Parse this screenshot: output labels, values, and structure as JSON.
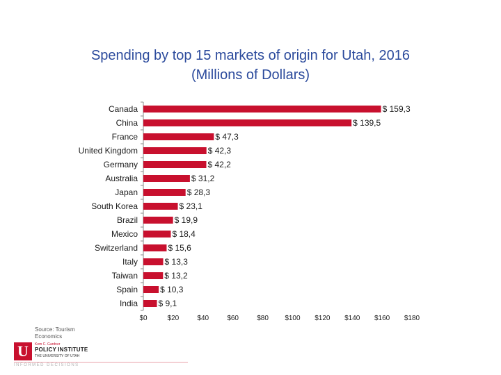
{
  "title_line1": "Spending by top 15 markets of origin for Utah, 2016",
  "title_line2": "(Millions of Dollars)",
  "source_line1": "Source: Tourism",
  "source_line2": "Economics",
  "logo": {
    "letter": "U",
    "kicker": "Kem C. Gardner",
    "name": "POLICY INSTITUTE",
    "sub": "THE UNIVERSITY OF UTAH",
    "tagline": "INFORMED DECISIONS"
  },
  "colors": {
    "bar": "#c8102e",
    "title": "#2b4a9c",
    "axis": "#888888"
  },
  "chart_data": {
    "type": "bar",
    "orientation": "horizontal",
    "title": "Spending by top 15 markets of origin for Utah, 2016 (Millions of Dollars)",
    "categories": [
      "Canada",
      "China",
      "France",
      "United Kingdom",
      "Germany",
      "Australia",
      "Japan",
      "South Korea",
      "Brazil",
      "Mexico",
      "Switzerland",
      "Italy",
      "Taiwan",
      "Spain",
      "India"
    ],
    "values": [
      159.3,
      139.5,
      47.3,
      42.3,
      42.2,
      31.2,
      28.3,
      23.1,
      19.9,
      18.4,
      15.6,
      13.3,
      13.2,
      10.3,
      9.1
    ],
    "value_labels": [
      "$ 159,3",
      "$ 139,5",
      "$ 47,3",
      "$ 42,3",
      "$ 42,2",
      "$ 31,2",
      "$ 28,3",
      "$ 23,1",
      "$ 19,9",
      "$ 18,4",
      "$ 15,6",
      "$ 13,3",
      "$ 13,2",
      "$ 10,3",
      "$ 9,1"
    ],
    "xlim": [
      0,
      180
    ],
    "xticks": [
      0,
      20,
      40,
      60,
      80,
      100,
      120,
      140,
      160,
      180
    ],
    "xtick_labels": [
      "$0",
      "$20",
      "$40",
      "$60",
      "$80",
      "$100",
      "$120",
      "$140",
      "$160",
      "$180"
    ],
    "xlabel": "",
    "ylabel": "",
    "grid": false,
    "legend": "none"
  }
}
